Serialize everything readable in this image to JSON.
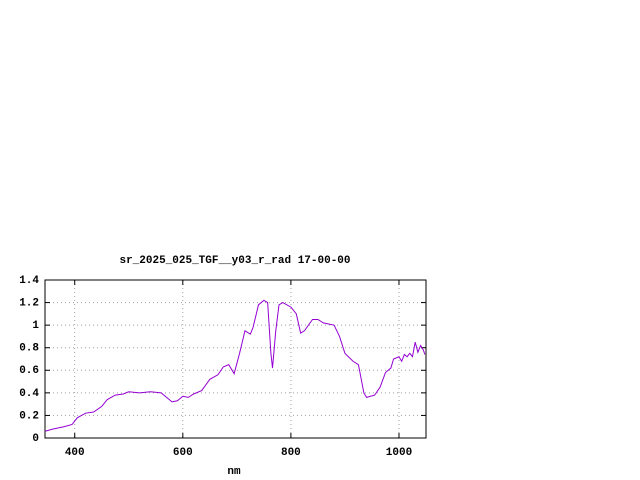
{
  "chart_data": {
    "type": "line",
    "title": "sr_2025_025_TGF__y03_r_rad 17-00-00",
    "x_label": "nm",
    "x": [
      345,
      360,
      380,
      395,
      405,
      420,
      435,
      450,
      460,
      475,
      490,
      500,
      520,
      540,
      560,
      570,
      580,
      590,
      600,
      610,
      620,
      635,
      650,
      665,
      675,
      685,
      695,
      705,
      715,
      725,
      730,
      740,
      750,
      757,
      763,
      766,
      772,
      778,
      785,
      800,
      810,
      818,
      825,
      840,
      850,
      860,
      880,
      890,
      900,
      915,
      925,
      935,
      940,
      955,
      965,
      975,
      985,
      990,
      1000,
      1005,
      1010,
      1015,
      1020,
      1025,
      1030,
      1035,
      1040,
      1045,
      1048
    ],
    "series": [
      {
        "name": "sr_2025_025_TGF__y03_r_rad",
        "color": "#9400d3",
        "values": [
          0.06,
          0.08,
          0.1,
          0.12,
          0.18,
          0.22,
          0.23,
          0.28,
          0.34,
          0.38,
          0.39,
          0.41,
          0.4,
          0.41,
          0.4,
          0.36,
          0.32,
          0.33,
          0.37,
          0.36,
          0.39,
          0.42,
          0.52,
          0.56,
          0.63,
          0.65,
          0.57,
          0.75,
          0.95,
          0.92,
          0.98,
          1.18,
          1.22,
          1.2,
          0.75,
          0.62,
          0.95,
          1.18,
          1.2,
          1.16,
          1.1,
          0.93,
          0.95,
          1.05,
          1.05,
          1.02,
          1.0,
          0.9,
          0.75,
          0.68,
          0.65,
          0.4,
          0.36,
          0.38,
          0.45,
          0.58,
          0.62,
          0.7,
          0.72,
          0.68,
          0.74,
          0.72,
          0.75,
          0.72,
          0.85,
          0.76,
          0.82,
          0.78,
          0.74
        ]
      }
    ],
    "xlim": [
      345,
      1050
    ],
    "ylim": [
      0,
      1.4
    ],
    "xticks": [
      400,
      600,
      800,
      1000
    ],
    "yticks": [
      0,
      0.2,
      0.4,
      0.6,
      0.8,
      1,
      1.2,
      1.4
    ],
    "grid": true
  }
}
